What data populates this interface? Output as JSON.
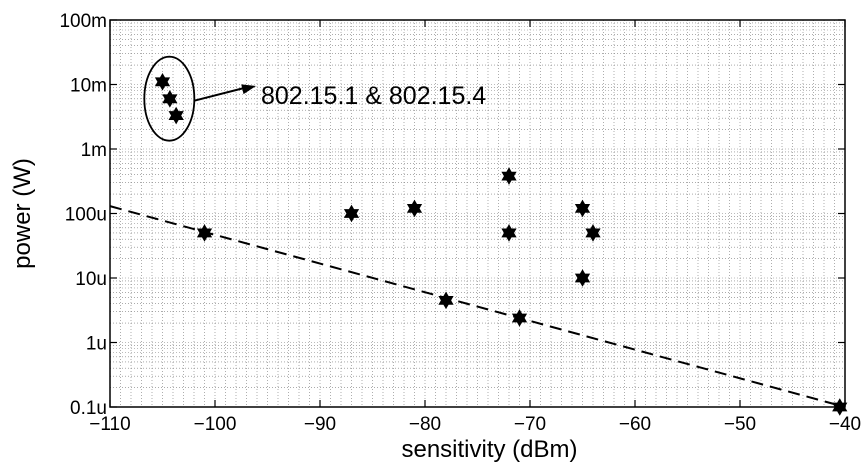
{
  "chart_data": {
    "type": "scatter",
    "title": "",
    "xlabel": "sensitivity (dBm)",
    "ylabel": "power (W)",
    "xlim": [
      -110,
      -40
    ],
    "ylim": [
      1e-07,
      0.1
    ],
    "yscale": "log",
    "grid": true,
    "x_ticks": [
      -110,
      -100,
      -90,
      -80,
      -70,
      -60,
      -50,
      -40
    ],
    "x_tick_labels": [
      "−110",
      "−100",
      "−90",
      "−80",
      "−70",
      "−60",
      "−50",
      "−40"
    ],
    "y_ticks": [
      1e-07,
      1e-06,
      1e-05,
      0.0001,
      0.001,
      0.01,
      0.1
    ],
    "y_tick_labels": [
      "0.1u",
      "1u",
      "10u",
      "100u",
      "1m",
      "10m",
      "100m"
    ],
    "marker": "hexagram",
    "marker_color": "#000000",
    "points": [
      {
        "x": -105,
        "y": 0.011
      },
      {
        "x": -104.3,
        "y": 0.006
      },
      {
        "x": -103.7,
        "y": 0.0033
      },
      {
        "x": -101,
        "y": 5e-05
      },
      {
        "x": -87,
        "y": 0.0001
      },
      {
        "x": -81,
        "y": 0.00012
      },
      {
        "x": -78,
        "y": 4.5e-06
      },
      {
        "x": -72,
        "y": 0.00038
      },
      {
        "x": -72,
        "y": 5e-05
      },
      {
        "x": -71,
        "y": 2.4e-06
      },
      {
        "x": -65,
        "y": 0.00012
      },
      {
        "x": -64,
        "y": 5e-05
      },
      {
        "x": -65,
        "y": 1e-05
      },
      {
        "x": -40.5,
        "y": 1e-07
      }
    ],
    "fit_line": {
      "style": "dashed",
      "x": [
        -110,
        -40
      ],
      "y": [
        0.00013,
        1e-07
      ]
    },
    "annotation": {
      "text": "802.15.1 & 802.15.4",
      "target_points": [
        0,
        1,
        2
      ]
    }
  }
}
